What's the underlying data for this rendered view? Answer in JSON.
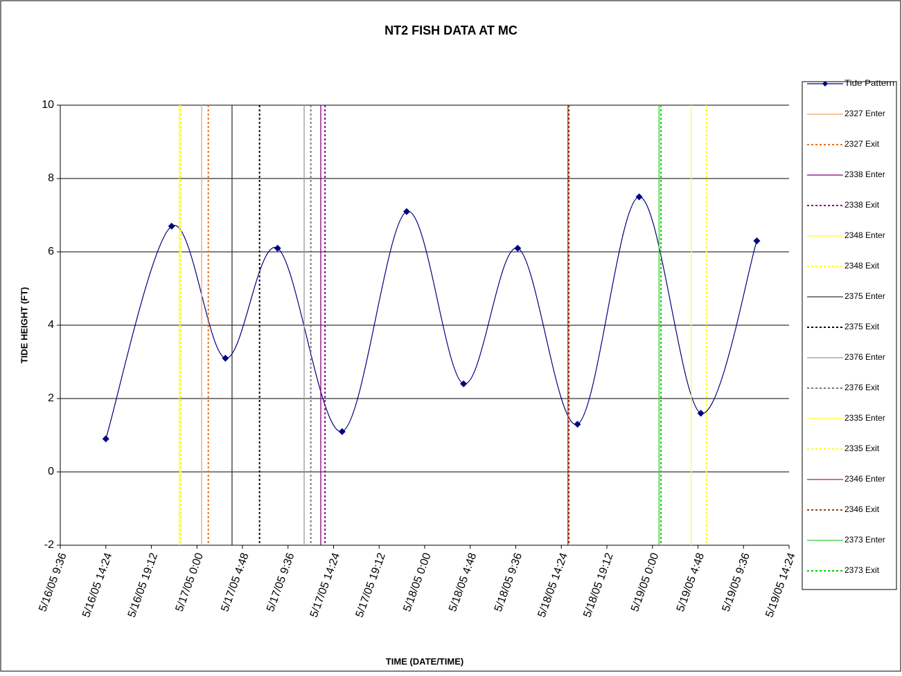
{
  "chart_data": {
    "type": "line",
    "title": "NT2 FISH DATA AT MC",
    "x_label": "TIME (DATE/TIME)",
    "y_label": "TIDE HEIGHT (FT)",
    "xlim": [
      "2005-05-16T09:36",
      "2005-05-19T14:24"
    ],
    "xticks": [
      {
        "value": "2005-05-16T09:36",
        "label": "5/16/05 9:36"
      },
      {
        "value": "2005-05-16T14:24",
        "label": "5/16/05 14:24"
      },
      {
        "value": "2005-05-16T19:12",
        "label": "5/16/05 19:12"
      },
      {
        "value": "2005-05-17T00:00",
        "label": "5/17/05 0:00"
      },
      {
        "value": "2005-05-17T04:48",
        "label": "5/17/05 4:48"
      },
      {
        "value": "2005-05-17T09:36",
        "label": "5/17/05 9:36"
      },
      {
        "value": "2005-05-17T14:24",
        "label": "5/17/05 14:24"
      },
      {
        "value": "2005-05-17T19:12",
        "label": "5/17/05 19:12"
      },
      {
        "value": "2005-05-18T00:00",
        "label": "5/18/05 0:00"
      },
      {
        "value": "2005-05-18T04:48",
        "label": "5/18/05 4:48"
      },
      {
        "value": "2005-05-18T09:36",
        "label": "5/18/05 9:36"
      },
      {
        "value": "2005-05-18T14:24",
        "label": "5/18/05 14:24"
      },
      {
        "value": "2005-05-18T19:12",
        "label": "5/18/05 19:12"
      },
      {
        "value": "2005-05-19T00:00",
        "label": "5/19/05 0:00"
      },
      {
        "value": "2005-05-19T04:48",
        "label": "5/19/05 4:48"
      },
      {
        "value": "2005-05-19T09:36",
        "label": "5/19/05 9:36"
      },
      {
        "value": "2005-05-19T14:24",
        "label": "5/19/05 14:24"
      }
    ],
    "ylim": [
      -2,
      10
    ],
    "yticks": [
      -2,
      0,
      2,
      4,
      6,
      8,
      10
    ],
    "grid": true,
    "legend": "right",
    "series": [
      {
        "name": "Tide Pattern",
        "color": "#000080",
        "smooth": true,
        "marker": "diamond",
        "x": [
          "2005-05-16T14:24",
          "2005-05-16T21:20",
          "2005-05-17T03:00",
          "2005-05-17T08:30",
          "2005-05-17T15:18",
          "2005-05-17T22:06",
          "2005-05-18T04:06",
          "2005-05-18T09:48",
          "2005-05-18T16:06",
          "2005-05-18T22:36",
          "2005-05-19T05:06",
          "2005-05-19T11:00"
        ],
        "values": [
          0.9,
          6.7,
          3.1,
          6.1,
          1.1,
          7.1,
          2.4,
          6.1,
          1.3,
          7.5,
          1.6,
          6.3
        ]
      },
      {
        "name": "2327 Enter",
        "color": "#f4a460",
        "style": "solid",
        "x": [
          "2005-05-17T00:30"
        ]
      },
      {
        "name": "2327 Exit",
        "color": "#e07020",
        "style": "dotted",
        "x": [
          "2005-05-17T01:12"
        ]
      },
      {
        "name": "2338 Enter",
        "color": "#800080",
        "style": "solid",
        "x": [
          "2005-05-17T13:03"
        ]
      },
      {
        "name": "2338 Exit",
        "color": "#800080",
        "style": "dotted",
        "x": [
          "2005-05-17T13:30"
        ]
      },
      {
        "name": "2348 Enter",
        "color": "#ffff00",
        "style": "solid",
        "x": [
          "2005-05-16T22:09"
        ]
      },
      {
        "name": "2348 Exit",
        "color": "#ffff00",
        "style": "dotted",
        "x": [
          "2005-05-16T22:18"
        ]
      },
      {
        "name": "2375 Enter",
        "color": "#333333",
        "style": "solid",
        "x": [
          "2005-05-17T03:42"
        ]
      },
      {
        "name": "2375 Exit",
        "color": "#000000",
        "style": "dotted",
        "x": [
          "2005-05-17T06:36"
        ]
      },
      {
        "name": "2376 Enter",
        "color": "#999999",
        "style": "solid",
        "x": [
          "2005-05-17T11:18"
        ]
      },
      {
        "name": "2376 Exit",
        "color": "#777777",
        "style": "dotted",
        "x": [
          "2005-05-17T12:00"
        ]
      },
      {
        "name": "2335 Enter",
        "color": "#ffff33",
        "style": "solid",
        "x": [
          "2005-05-19T04:06"
        ]
      },
      {
        "name": "2335 Exit",
        "color": "#ffff00",
        "style": "dotted",
        "x": [
          "2005-05-19T05:42"
        ]
      },
      {
        "name": "2346 Enter",
        "color": "#b22222",
        "style": "solid",
        "x": [
          "2005-05-18T15:06"
        ]
      },
      {
        "name": "2346 Exit",
        "color": "#8b4513",
        "style": "dotted",
        "x": [
          "2005-05-18T15:12"
        ]
      },
      {
        "name": "2373 Enter",
        "color": "#33cc33",
        "style": "solid",
        "x": [
          "2005-05-19T00:42"
        ]
      },
      {
        "name": "2373 Exit",
        "color": "#00cc00",
        "style": "dotted",
        "x": [
          "2005-05-19T00:54"
        ]
      }
    ]
  }
}
